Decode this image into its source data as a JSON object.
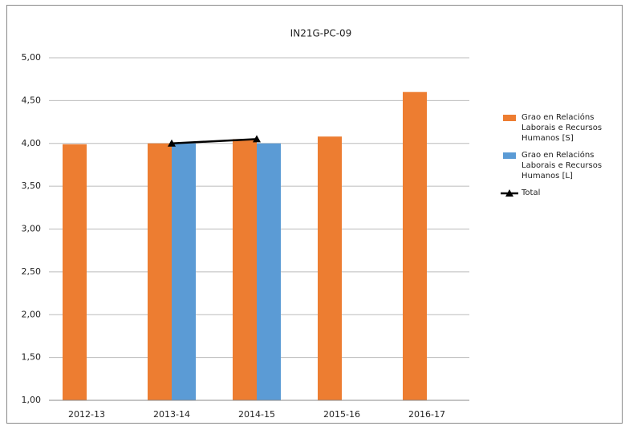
{
  "chart_data": {
    "type": "bar",
    "title": "IN21G-PC-09",
    "categories": [
      "2012-13",
      "2013-14",
      "2014-15",
      "2015-16",
      "2016-17"
    ],
    "series": [
      {
        "name": "Grao en Relacións Laborais e Recursos Humanos [S]",
        "color": "#ed7d31",
        "type": "bar",
        "values": [
          3.99,
          4.0,
          4.05,
          4.08,
          4.6
        ]
      },
      {
        "name": "Grao en Relacións Laborais e Recursos Humanos [L]",
        "color": "#5b9bd5",
        "type": "bar",
        "values": [
          null,
          4.0,
          4.0,
          null,
          null
        ]
      },
      {
        "name": "Total",
        "color": "#000000",
        "type": "line",
        "values": [
          null,
          4.0,
          4.05,
          null,
          null
        ]
      }
    ],
    "ylim": [
      1,
      5
    ],
    "yticks": [
      {
        "value": 1,
        "label": "1,00"
      },
      {
        "value": 1.5,
        "label": "1,50"
      },
      {
        "value": 2,
        "label": "2,00"
      },
      {
        "value": 2.5,
        "label": "2,50"
      },
      {
        "value": 3,
        "label": "3,00"
      },
      {
        "value": 3.5,
        "label": "3,50"
      },
      {
        "value": 4,
        "label": "4,00"
      },
      {
        "value": 4.5,
        "label": "4,50"
      },
      {
        "value": 5,
        "label": "5,00"
      }
    ],
    "grid": true,
    "legend": "right"
  }
}
